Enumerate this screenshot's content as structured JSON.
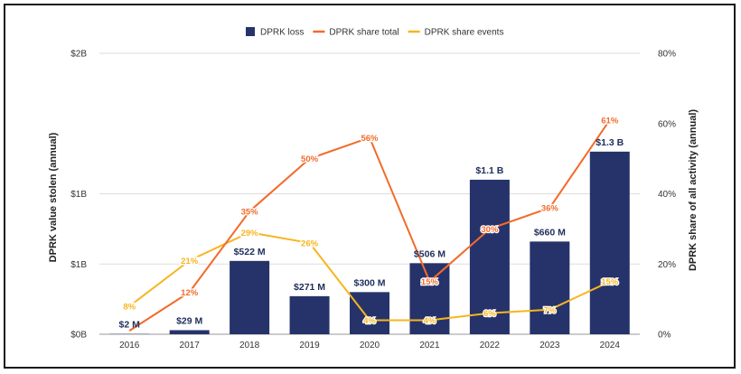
{
  "chart_data": {
    "type": "bar",
    "title": "",
    "categories": [
      "2016",
      "2017",
      "2018",
      "2019",
      "2020",
      "2021",
      "2022",
      "2023",
      "2024"
    ],
    "legend": [
      {
        "name": "DPRK loss",
        "kind": "bar",
        "color": "#26336a"
      },
      {
        "name": "DPRK share total",
        "kind": "line",
        "color": "#f26b2b"
      },
      {
        "name": "DPRK share events",
        "kind": "line",
        "color": "#f7b51e"
      }
    ],
    "legend_placement": "top-center",
    "series": [
      {
        "name": "DPRK loss",
        "kind": "bar",
        "axis": "left",
        "values": [
          2,
          29,
          522,
          271,
          300,
          506,
          1100,
          660,
          1300
        ],
        "labels": [
          "$2  M",
          "$29  M",
          "$522  M",
          "$271  M",
          "$300  M",
          "$506  M",
          "$1.1 B",
          "$660  M",
          "$1.3 B"
        ]
      },
      {
        "name": "DPRK share total",
        "kind": "line",
        "axis": "right",
        "values": [
          1,
          12,
          35,
          50,
          56,
          15,
          30,
          36,
          61
        ],
        "labels": [
          "",
          "12%",
          "35%",
          "50%",
          "56%",
          "15%",
          "30%",
          "36%",
          "61%"
        ]
      },
      {
        "name": "DPRK share events",
        "kind": "line",
        "axis": "right",
        "values": [
          8,
          21,
          29,
          26,
          4,
          4,
          6,
          7,
          15
        ],
        "labels": [
          "8%",
          "21%",
          "29%",
          "26%",
          "4%",
          "4%",
          "6%",
          "7%",
          "15%"
        ]
      }
    ],
    "y_left": {
      "label": "DPRK value stolen (annual)",
      "range": [
        0,
        2000
      ],
      "ticks": [
        0,
        500,
        1000,
        2000
      ],
      "tick_labels": [
        "$0B",
        "$1B",
        "$1B",
        "$2B"
      ]
    },
    "y_right": {
      "label": "DPRK share of all activity (annual)",
      "range": [
        0,
        80
      ],
      "ticks": [
        0,
        20,
        40,
        60,
        80
      ],
      "tick_labels": [
        "0%",
        "20%",
        "40%",
        "60%",
        "80%"
      ]
    },
    "grid": true
  }
}
